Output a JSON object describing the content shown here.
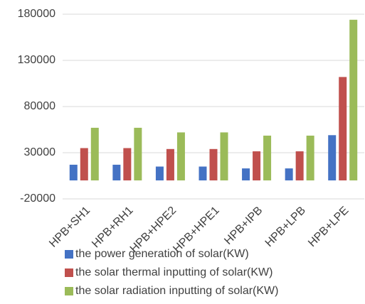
{
  "chart_data": {
    "type": "bar",
    "categories": [
      "HPB+SH1",
      "HPB+RH1",
      "HPB+HPE2",
      "HPB+HPE1",
      "HPB+IPB",
      "HPB+LPB",
      "HPB+LPE"
    ],
    "series": [
      {
        "name": "the power generation of solar(KW)",
        "color": "#4472c4",
        "values": [
          17000,
          17000,
          15000,
          15000,
          13000,
          13000,
          49000
        ]
      },
      {
        "name": "the solar thermal inputting of solar(KW)",
        "color": "#c0504d",
        "values": [
          35000,
          35000,
          34000,
          34000,
          31500,
          31500,
          112000
        ]
      },
      {
        "name": "the solar radiation inputting of solar(KW)",
        "color": "#9bbb59",
        "values": [
          57000,
          57000,
          52000,
          52000,
          48500,
          48500,
          174000
        ]
      }
    ],
    "ylim": [
      -20000,
      180000
    ],
    "yticks": [
      -20000,
      30000,
      80000,
      130000,
      180000
    ],
    "grid": true
  }
}
